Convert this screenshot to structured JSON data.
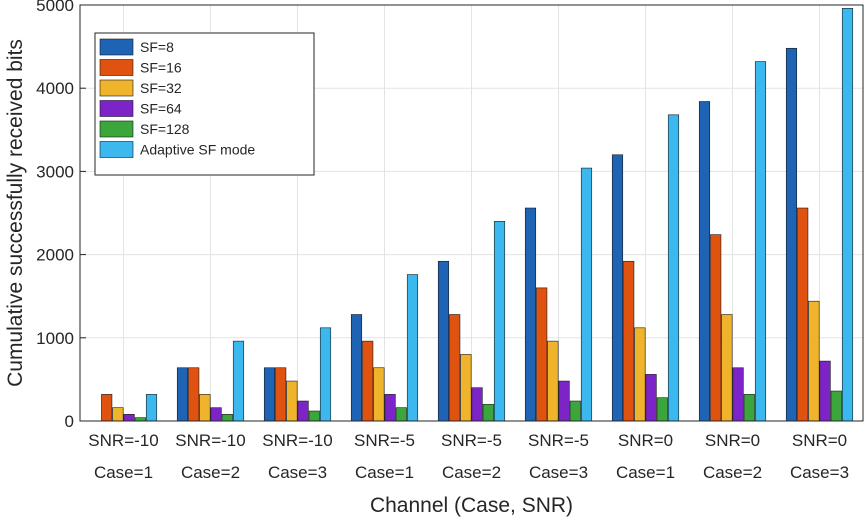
{
  "chart_data": {
    "type": "bar",
    "title": "",
    "xlabel": "Channel (Case, SNR)",
    "ylabel": "Cumulative successfully received bits",
    "ylim": [
      0,
      5000
    ],
    "yticks": [
      0,
      1000,
      2000,
      3000,
      4000,
      5000
    ],
    "grid": true,
    "legend_position": "top-left",
    "categories": [
      [
        "SNR=-10",
        "Case=1"
      ],
      [
        "SNR=-10",
        "Case=2"
      ],
      [
        "SNR=-10",
        "Case=3"
      ],
      [
        "SNR=-5",
        "Case=1"
      ],
      [
        "SNR=-5",
        "Case=2"
      ],
      [
        "SNR=-5",
        "Case=3"
      ],
      [
        "SNR=0",
        "Case=1"
      ],
      [
        "SNR=0",
        "Case=2"
      ],
      [
        "SNR=0",
        "Case=3"
      ]
    ],
    "series": [
      {
        "name": "SF=8",
        "color": "#1f63b4",
        "values": [
          0,
          640,
          640,
          1280,
          1920,
          2560,
          3200,
          3840,
          4480
        ]
      },
      {
        "name": "SF=16",
        "color": "#e0520f",
        "values": [
          320,
          640,
          640,
          960,
          1280,
          1600,
          1920,
          2240,
          2560
        ]
      },
      {
        "name": "SF=32",
        "color": "#f0b42c",
        "values": [
          160,
          320,
          480,
          640,
          800,
          960,
          1120,
          1280,
          1440
        ]
      },
      {
        "name": "SF=64",
        "color": "#7c24c8",
        "values": [
          80,
          160,
          240,
          320,
          400,
          480,
          560,
          640,
          720
        ]
      },
      {
        "name": "SF=128",
        "color": "#3aa63c",
        "values": [
          40,
          80,
          120,
          160,
          200,
          240,
          280,
          320,
          360
        ]
      },
      {
        "name": "Adaptive SF mode",
        "color": "#3bb9ee",
        "values": [
          320,
          960,
          1120,
          1760,
          2400,
          3040,
          3680,
          4320,
          4960
        ]
      }
    ]
  }
}
